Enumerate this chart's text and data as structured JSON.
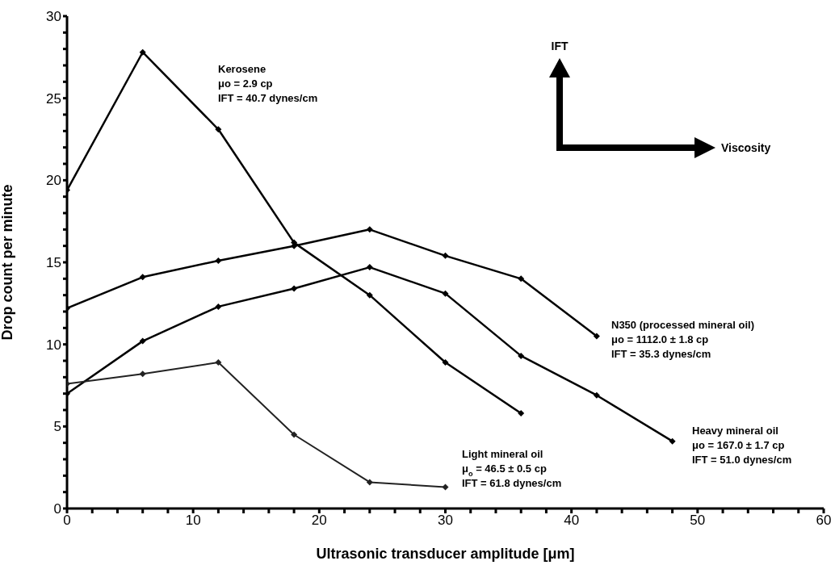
{
  "chart_data": {
    "type": "line",
    "xlabel": "Ultrasonic transducer amplitude [μm]",
    "ylabel": "Drop count per minute",
    "xlim": [
      0,
      60
    ],
    "xticks": [
      0,
      {
        "value": 2,
        "label": null
      },
      {
        "value": 4,
        "label": null
      },
      {
        "value": 6,
        "label": null
      },
      {
        "value": 8,
        "label": null
      },
      10,
      {
        "value": 12,
        "label": null
      },
      {
        "value": 14,
        "label": null
      },
      {
        "value": 16,
        "label": null
      },
      {
        "value": 18,
        "label": null
      },
      20,
      {
        "value": 22,
        "label": null
      },
      {
        "value": 24,
        "label": null
      },
      {
        "value": 26,
        "label": null
      },
      {
        "value": 28,
        "label": null
      },
      30,
      {
        "value": 32,
        "label": null
      },
      {
        "value": 34,
        "label": null
      },
      {
        "value": 36,
        "label": null
      },
      {
        "value": 38,
        "label": null
      },
      40,
      {
        "value": 42,
        "label": null
      },
      {
        "value": 44,
        "label": null
      },
      {
        "value": 46,
        "label": null
      },
      {
        "value": 48,
        "label": null
      },
      50,
      {
        "value": 52,
        "label": null
      },
      {
        "value": 54,
        "label": null
      },
      {
        "value": 56,
        "label": null
      },
      {
        "value": 58,
        "label": null
      },
      60
    ],
    "ylim": [
      0,
      30
    ],
    "yticks": [
      0,
      {
        "value": 1,
        "label": null
      },
      {
        "value": 2,
        "label": null
      },
      {
        "value": 3,
        "label": null
      },
      {
        "value": 4,
        "label": null
      },
      5,
      {
        "value": 6,
        "label": null
      },
      {
        "value": 7,
        "label": null
      },
      {
        "value": 8,
        "label": null
      },
      {
        "value": 9,
        "label": null
      },
      10,
      {
        "value": 11,
        "label": null
      },
      {
        "value": 12,
        "label": null
      },
      {
        "value": 13,
        "label": null
      },
      {
        "value": 14,
        "label": null
      },
      15,
      {
        "value": 16,
        "label": null
      },
      {
        "value": 17,
        "label": null
      },
      {
        "value": 18,
        "label": null
      },
      {
        "value": 19,
        "label": null
      },
      20,
      {
        "value": 21,
        "label": null
      },
      {
        "value": 22,
        "label": null
      },
      {
        "value": 23,
        "label": null
      },
      {
        "value": 24,
        "label": null
      },
      25,
      {
        "value": 26,
        "label": null
      },
      {
        "value": 27,
        "label": null
      },
      {
        "value": 28,
        "label": null
      },
      {
        "value": 29,
        "label": null
      },
      30
    ],
    "marker": "diamond",
    "line_style": "solid",
    "series": [
      {
        "color": "#000000",
        "x": [
          0,
          6,
          12,
          18,
          24,
          30,
          36
        ],
        "values": [
          19.4,
          27.8,
          23.1,
          16.2,
          13.0,
          8.9,
          5.8
        ]
      },
      {
        "color": "#000000",
        "x": [
          0,
          6,
          12,
          18,
          24,
          30,
          36,
          42
        ],
        "values": [
          12.2,
          14.1,
          15.1,
          16.0,
          17.0,
          15.4,
          14.0,
          10.5
        ]
      },
      {
        "color": "#000000",
        "x": [
          0,
          6,
          12,
          18,
          24,
          30,
          36,
          42,
          48
        ],
        "values": [
          7.0,
          10.2,
          12.3,
          13.4,
          14.7,
          13.1,
          9.3,
          6.9,
          4.1
        ]
      },
      {
        "color": "#222222",
        "x": [
          0,
          6,
          12,
          18,
          24,
          30
        ],
        "values": [
          7.6,
          8.2,
          8.9,
          4.5,
          1.6,
          1.3
        ]
      }
    ],
    "annotations": [
      "Kerosene\nμo = 2.9 cp\nIFT = 40.7  dynes/cm",
      "N350 (processed mineral oil)\nμo = 1112.0 ± 1.8 cp\nIFT = 35.3  dynes/cm",
      "Heavy mineral oil\nμo = 167.0 ± 1.7 cp\nIFT = 51.0  dynes/cm",
      "Light mineral oil\nμ$_{o}$ = 46.5 ± 0.5 cp\nIFT = 61.8 dynes/cm",
      "IFT",
      "Viscosity"
    ]
  }
}
